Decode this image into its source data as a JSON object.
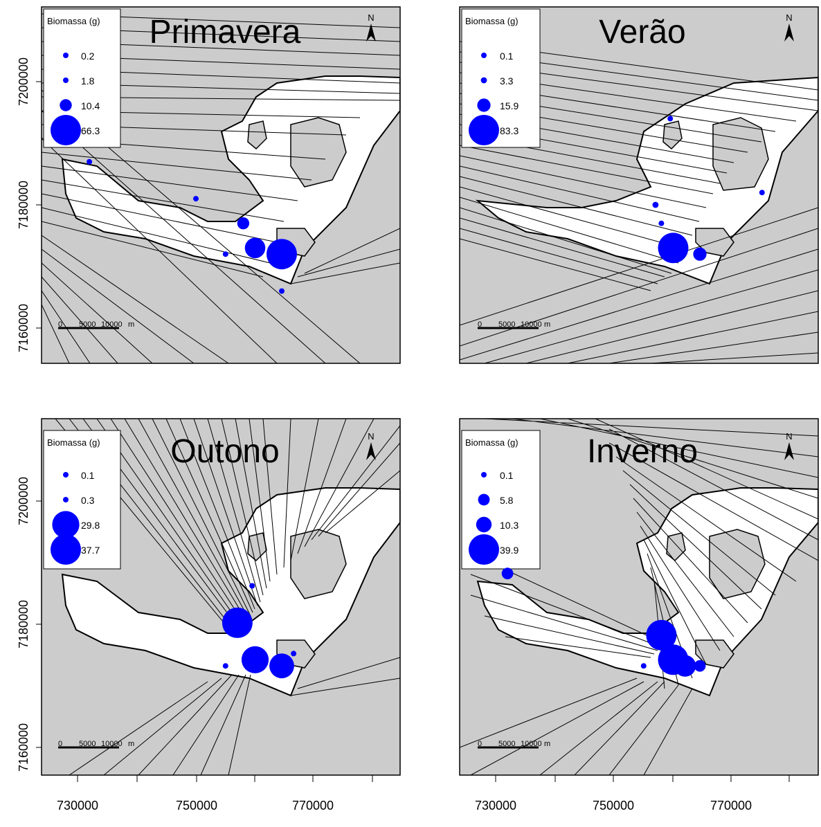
{
  "chart_data": {
    "type": "map",
    "x_ticks": [
      "730000",
      "750000",
      "770000"
    ],
    "y_ticks": [
      "7160000",
      "7180000",
      "7200000"
    ],
    "legend_title": "Biomassa (g)",
    "north_label": "N",
    "scale_bar": {
      "labels": [
        "0",
        "5000",
        "10000"
      ],
      "unit": "m"
    },
    "panels": [
      {
        "title": "Primavera",
        "legend_values": [
          "0.2",
          "1.8",
          "10.4",
          "66.3"
        ],
        "points": [
          {
            "x": 732000,
            "y": 7187000,
            "biomass": 0.2
          },
          {
            "x": 750000,
            "y": 7181000,
            "biomass": 1.8
          },
          {
            "x": 758000,
            "y": 7177000,
            "biomass": 10.4
          },
          {
            "x": 755000,
            "y": 7172000,
            "biomass": 0.2
          },
          {
            "x": 760000,
            "y": 7173000,
            "biomass": 30
          },
          {
            "x": 764500,
            "y": 7172000,
            "biomass": 66.3
          },
          {
            "x": 764500,
            "y": 7166000,
            "biomass": 0.2
          }
        ]
      },
      {
        "title": "Verão",
        "legend_values": [
          "0.1",
          "3.3",
          "15.9",
          "83.3"
        ],
        "points": [
          {
            "x": 759500,
            "y": 7194000,
            "biomass": 0.1
          },
          {
            "x": 775000,
            "y": 7182000,
            "biomass": 0.1
          },
          {
            "x": 757000,
            "y": 7180000,
            "biomass": 3.3
          },
          {
            "x": 758000,
            "y": 7177000,
            "biomass": 1.5
          },
          {
            "x": 760000,
            "y": 7173000,
            "biomass": 83.3
          },
          {
            "x": 764500,
            "y": 7172000,
            "biomass": 15.9
          }
        ]
      },
      {
        "title": "Outono",
        "legend_values": [
          "0.1",
          "0.3",
          "29.8",
          "37.7"
        ],
        "points": [
          {
            "x": 759500,
            "y": 7185000,
            "biomass": 0.1
          },
          {
            "x": 757000,
            "y": 7179000,
            "biomass": 37.7
          },
          {
            "x": 766500,
            "y": 7174000,
            "biomass": 0.1
          },
          {
            "x": 755000,
            "y": 7172000,
            "biomass": 0.3
          },
          {
            "x": 760000,
            "y": 7173000,
            "biomass": 29.8
          },
          {
            "x": 764500,
            "y": 7172000,
            "biomass": 25
          }
        ]
      },
      {
        "title": "Inverno",
        "legend_values": [
          "0.1",
          "5.8",
          "10.3",
          "39.9"
        ],
        "points": [
          {
            "x": 732000,
            "y": 7187000,
            "biomass": 5.8
          },
          {
            "x": 758000,
            "y": 7177000,
            "biomass": 39.9
          },
          {
            "x": 755000,
            "y": 7172000,
            "biomass": 0.1
          },
          {
            "x": 760000,
            "y": 7173000,
            "biomass": 39.9
          },
          {
            "x": 762000,
            "y": 7172000,
            "biomass": 20
          },
          {
            "x": 764500,
            "y": 7172000,
            "biomass": 5.8
          }
        ]
      }
    ]
  }
}
